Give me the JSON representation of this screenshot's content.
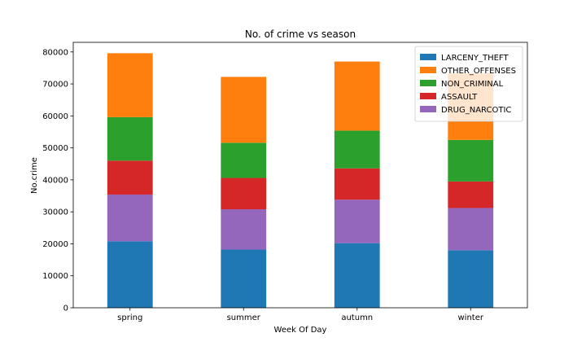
{
  "chart_data": {
    "type": "bar",
    "stacked": true,
    "title": "No. of crime vs season",
    "xlabel": "Week Of Day",
    "ylabel": "No.crime",
    "categories": [
      "spring",
      "summer",
      "autumn",
      "winter"
    ],
    "ylim": [
      0,
      83000
    ],
    "yticks": [
      0,
      10000,
      20000,
      30000,
      40000,
      50000,
      60000,
      70000,
      80000
    ],
    "legend_position": "top-right",
    "series": [
      {
        "name": "LARCENY_THEFT",
        "color": "#1f77b4",
        "values": [
          20800,
          18200,
          20200,
          18000
        ]
      },
      {
        "name": "DRUG_NARCOTIC",
        "color": "#9467bd",
        "values": [
          14600,
          12600,
          13600,
          13200
        ]
      },
      {
        "name": "ASSAULT",
        "color": "#d62728",
        "values": [
          10600,
          9800,
          9800,
          8300
        ]
      },
      {
        "name": "NON_CRIMINAL",
        "color": "#2ca02c",
        "values": [
          13600,
          11000,
          11800,
          13000
        ]
      },
      {
        "name": "OTHER_OFFENSES",
        "color": "#ff7f0e",
        "values": [
          20000,
          20600,
          21600,
          20800
        ]
      }
    ],
    "legend_order": [
      "LARCENY_THEFT",
      "OTHER_OFFENSES",
      "NON_CRIMINAL",
      "ASSAULT",
      "DRUG_NARCOTIC"
    ]
  }
}
